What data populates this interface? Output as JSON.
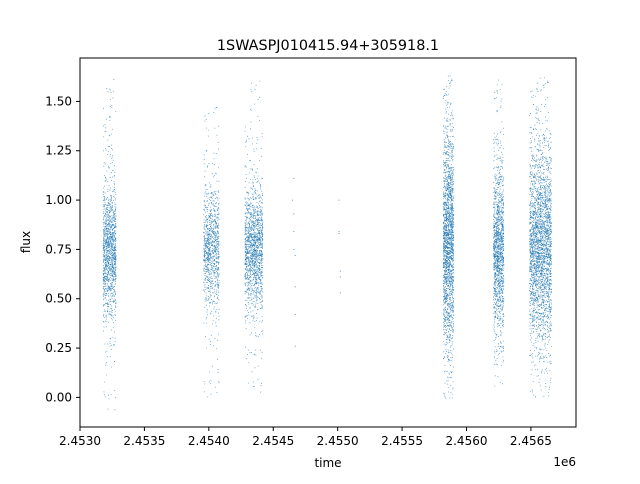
{
  "chart_data": {
    "type": "scatter",
    "title": "1SWASPJ010415.94+305918.1",
    "xlabel": "time",
    "ylabel": "flux",
    "x_offset_label": "1e6",
    "xlim": [
      2.453,
      2.45685
    ],
    "ylim": [
      -0.15,
      1.72
    ],
    "x_ticks": [
      {
        "value": 2.453,
        "label": "2.4530"
      },
      {
        "value": 2.4535,
        "label": "2.4535"
      },
      {
        "value": 2.454,
        "label": "2.4540"
      },
      {
        "value": 2.4545,
        "label": "2.4545"
      },
      {
        "value": 2.455,
        "label": "2.4550"
      },
      {
        "value": 2.4555,
        "label": "2.4555"
      },
      {
        "value": 2.456,
        "label": "2.4560"
      },
      {
        "value": 2.4565,
        "label": "2.4565"
      }
    ],
    "y_ticks": [
      {
        "value": 0.0,
        "label": "0.00"
      },
      {
        "value": 0.25,
        "label": "0.25"
      },
      {
        "value": 0.5,
        "label": "0.50"
      },
      {
        "value": 0.75,
        "label": "0.75"
      },
      {
        "value": 1.0,
        "label": "1.00"
      },
      {
        "value": 1.25,
        "label": "1.25"
      },
      {
        "value": 1.5,
        "label": "1.50"
      }
    ],
    "grid": false,
    "marker_color": "#1f77b4",
    "series": [
      {
        "clusters": [
          {
            "x_start": 2.45318,
            "x_end": 2.45328,
            "y_center": 0.74,
            "y_spread": 0.16,
            "y_min": -0.07,
            "y_max": 1.62,
            "density": 1300
          },
          {
            "x_start": 2.45396,
            "x_end": 2.45408,
            "y_center": 0.76,
            "y_spread": 0.15,
            "y_min": 0.0,
            "y_max": 1.49,
            "density": 1000
          },
          {
            "x_start": 2.45428,
            "x_end": 2.45442,
            "y_center": 0.75,
            "y_spread": 0.15,
            "y_min": 0.02,
            "y_max": 1.62,
            "density": 1500
          },
          {
            "x_start": 2.45582,
            "x_end": 2.4559,
            "y_center": 0.79,
            "y_spread": 0.26,
            "y_min": -0.01,
            "y_max": 1.63,
            "density": 2000
          },
          {
            "x_start": 2.45621,
            "x_end": 2.45629,
            "y_center": 0.74,
            "y_spread": 0.2,
            "y_min": 0.03,
            "y_max": 1.61,
            "density": 1400
          },
          {
            "x_start": 2.45649,
            "x_end": 2.45666,
            "y_center": 0.76,
            "y_spread": 0.24,
            "y_min": 0.0,
            "y_max": 1.62,
            "density": 2800
          }
        ],
        "sparse_points": [
          {
            "x": 2.45466,
            "y": 1.11
          },
          {
            "x": 2.45466,
            "y": 0.93
          },
          {
            "x": 2.45466,
            "y": 0.84
          },
          {
            "x": 2.45467,
            "y": 0.72
          },
          {
            "x": 2.45467,
            "y": 0.56
          },
          {
            "x": 2.45467,
            "y": 0.42
          },
          {
            "x": 2.45467,
            "y": 0.26
          },
          {
            "x": 2.45465,
            "y": 1.0
          },
          {
            "x": 2.45466,
            "y": 0.75
          },
          {
            "x": 2.45501,
            "y": 1.0
          },
          {
            "x": 2.45501,
            "y": 0.83
          },
          {
            "x": 2.45502,
            "y": 0.64
          },
          {
            "x": 2.45502,
            "y": 0.61
          },
          {
            "x": 2.45502,
            "y": 0.53
          },
          {
            "x": 2.45501,
            "y": 0.84
          }
        ]
      }
    ]
  }
}
